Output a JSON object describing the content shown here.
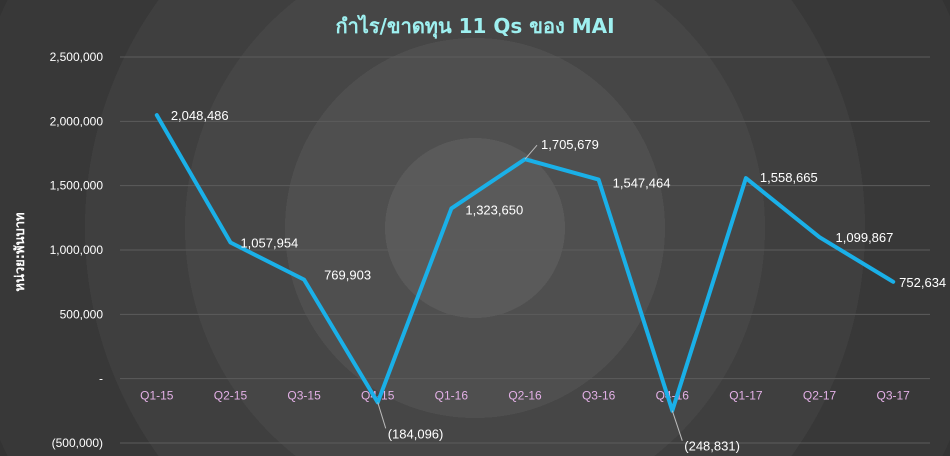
{
  "chart_data": {
    "type": "line",
    "title": "กำไร/ขาดทุน 11 Qs ของ MAI",
    "ylabel": "หน่วย:พันบาท",
    "xlabel": "",
    "categories": [
      "Q1-15",
      "Q2-15",
      "Q3-15",
      "Q4-15",
      "Q1-16",
      "Q2-16",
      "Q3-16",
      "Q4-16",
      "Q1-17",
      "Q2-17",
      "Q3-17"
    ],
    "values": [
      2048486,
      1057954,
      769903,
      -184096,
      1323650,
      1705679,
      1547464,
      -248831,
      1558665,
      1099867,
      752634
    ],
    "data_labels": [
      "2,048,486",
      "1,057,954",
      "769,903",
      "(184,096)",
      "1,323,650",
      "1,705,679",
      "1,547,464",
      "(248,831)",
      "1,558,665",
      "1,099,867",
      "752,634"
    ],
    "ylim": [
      -500000,
      2500000
    ],
    "yticks": [
      2500000,
      2000000,
      1500000,
      1000000,
      500000,
      0,
      -500000
    ],
    "ytick_labels": [
      "2,500,000",
      "2,000,000",
      "1,500,000",
      "1,000,000",
      "500,000",
      "-",
      "(500,000)"
    ],
    "grid": true,
    "colors": {
      "line": "#1ab0e8",
      "title": "#9ef0f0",
      "xtick": "#e3b0e6",
      "grid": "#5c5c5c",
      "background": "#3a3a3a"
    }
  }
}
